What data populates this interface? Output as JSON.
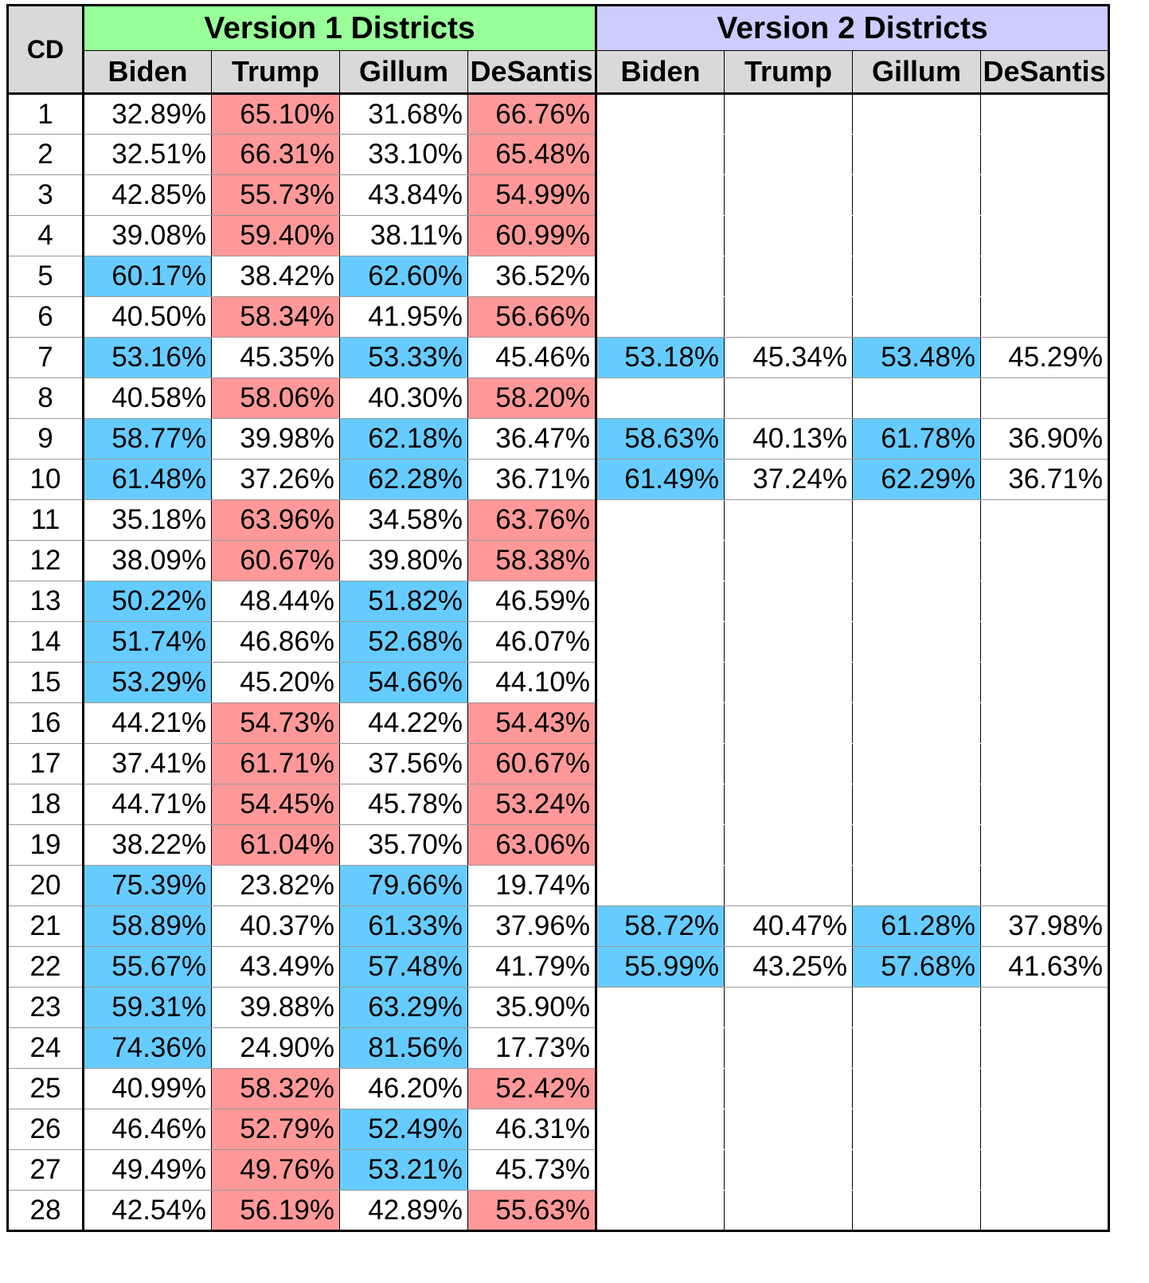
{
  "chart_data": {
    "type": "table",
    "row_header": "CD",
    "groups": [
      {
        "name": "Version 1 Districts",
        "color": "#99ff99"
      },
      {
        "name": "Version 2 Districts",
        "color": "#ccccff"
      }
    ],
    "columns": [
      "Biden",
      "Trump",
      "Gillum",
      "DeSantis"
    ],
    "cell_colors": {
      "dem_win": "#66ccff",
      "rep_win": "#ff9999"
    },
    "rows": [
      {
        "cd": "1",
        "v1": [
          "32.89%",
          "65.10%",
          "31.68%",
          "66.76%"
        ],
        "v2": null
      },
      {
        "cd": "2",
        "v1": [
          "32.51%",
          "66.31%",
          "33.10%",
          "65.48%"
        ],
        "v2": null
      },
      {
        "cd": "3",
        "v1": [
          "42.85%",
          "55.73%",
          "43.84%",
          "54.99%"
        ],
        "v2": null
      },
      {
        "cd": "4",
        "v1": [
          "39.08%",
          "59.40%",
          "38.11%",
          "60.99%"
        ],
        "v2": null
      },
      {
        "cd": "5",
        "v1": [
          "60.17%",
          "38.42%",
          "62.60%",
          "36.52%"
        ],
        "v2": null
      },
      {
        "cd": "6",
        "v1": [
          "40.50%",
          "58.34%",
          "41.95%",
          "56.66%"
        ],
        "v2": null
      },
      {
        "cd": "7",
        "v1": [
          "53.16%",
          "45.35%",
          "53.33%",
          "45.46%"
        ],
        "v2": [
          "53.18%",
          "45.34%",
          "53.48%",
          "45.29%"
        ]
      },
      {
        "cd": "8",
        "v1": [
          "40.58%",
          "58.06%",
          "40.30%",
          "58.20%"
        ],
        "v2": null
      },
      {
        "cd": "9",
        "v1": [
          "58.77%",
          "39.98%",
          "62.18%",
          "36.47%"
        ],
        "v2": [
          "58.63%",
          "40.13%",
          "61.78%",
          "36.90%"
        ]
      },
      {
        "cd": "10",
        "v1": [
          "61.48%",
          "37.26%",
          "62.28%",
          "36.71%"
        ],
        "v2": [
          "61.49%",
          "37.24%",
          "62.29%",
          "36.71%"
        ]
      },
      {
        "cd": "11",
        "v1": [
          "35.18%",
          "63.96%",
          "34.58%",
          "63.76%"
        ],
        "v2": null
      },
      {
        "cd": "12",
        "v1": [
          "38.09%",
          "60.67%",
          "39.80%",
          "58.38%"
        ],
        "v2": null
      },
      {
        "cd": "13",
        "v1": [
          "50.22%",
          "48.44%",
          "51.82%",
          "46.59%"
        ],
        "v2": null
      },
      {
        "cd": "14",
        "v1": [
          "51.74%",
          "46.86%",
          "52.68%",
          "46.07%"
        ],
        "v2": null
      },
      {
        "cd": "15",
        "v1": [
          "53.29%",
          "45.20%",
          "54.66%",
          "44.10%"
        ],
        "v2": null
      },
      {
        "cd": "16",
        "v1": [
          "44.21%",
          "54.73%",
          "44.22%",
          "54.43%"
        ],
        "v2": null
      },
      {
        "cd": "17",
        "v1": [
          "37.41%",
          "61.71%",
          "37.56%",
          "60.67%"
        ],
        "v2": null
      },
      {
        "cd": "18",
        "v1": [
          "44.71%",
          "54.45%",
          "45.78%",
          "53.24%"
        ],
        "v2": null
      },
      {
        "cd": "19",
        "v1": [
          "38.22%",
          "61.04%",
          "35.70%",
          "63.06%"
        ],
        "v2": null
      },
      {
        "cd": "20",
        "v1": [
          "75.39%",
          "23.82%",
          "79.66%",
          "19.74%"
        ],
        "v2": null
      },
      {
        "cd": "21",
        "v1": [
          "58.89%",
          "40.37%",
          "61.33%",
          "37.96%"
        ],
        "v2": [
          "58.72%",
          "40.47%",
          "61.28%",
          "37.98%"
        ]
      },
      {
        "cd": "22",
        "v1": [
          "55.67%",
          "43.49%",
          "57.48%",
          "41.79%"
        ],
        "v2": [
          "55.99%",
          "43.25%",
          "57.68%",
          "41.63%"
        ]
      },
      {
        "cd": "23",
        "v1": [
          "59.31%",
          "39.88%",
          "63.29%",
          "35.90%"
        ],
        "v2": null
      },
      {
        "cd": "24",
        "v1": [
          "74.36%",
          "24.90%",
          "81.56%",
          "17.73%"
        ],
        "v2": null
      },
      {
        "cd": "25",
        "v1": [
          "40.99%",
          "58.32%",
          "46.20%",
          "52.42%"
        ],
        "v2": null
      },
      {
        "cd": "26",
        "v1": [
          "46.46%",
          "52.79%",
          "52.49%",
          "46.31%"
        ],
        "v2": null
      },
      {
        "cd": "27",
        "v1": [
          "49.49%",
          "49.76%",
          "53.21%",
          "45.73%"
        ],
        "v2": null
      },
      {
        "cd": "28",
        "v1": [
          "42.54%",
          "56.19%",
          "42.89%",
          "55.63%"
        ],
        "v2": null
      }
    ]
  }
}
